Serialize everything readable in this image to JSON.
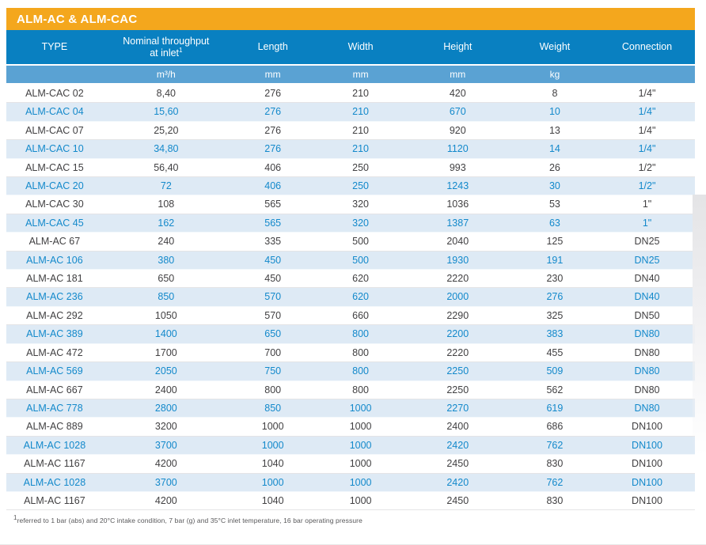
{
  "page": {
    "title": "ALM-AC & ALM-CAC",
    "footnote_sup": "1",
    "footnote_text": "referred to 1 bar (abs) and 20°C intake condition, 7 bar (g) and 35°C inlet temperature, 16 bar operating pressure"
  },
  "colors": {
    "title_bar_bg": "#F4A71D",
    "header_row_bg": "#0980C1",
    "units_row_bg": "#5AA2D3",
    "highlight_row_bg": "#DEEAF5",
    "highlight_row_text": "#1389CB",
    "normal_row_text": "#414042",
    "header_text": "#FFFFFF"
  },
  "table": {
    "header": {
      "type": "TYPE",
      "throughput_label": "Nominal throughput at inlet",
      "throughput_sup": "1",
      "length": "Length",
      "width": "Width",
      "height": "Height",
      "weight": "Weight",
      "connection": "Connection"
    },
    "units": {
      "type": "",
      "throughput": "m³/h",
      "length": "mm",
      "width": "mm",
      "height": "mm",
      "weight": "kg",
      "connection": ""
    },
    "rows": [
      [
        "ALM-CAC 02",
        "8,40",
        "276",
        "210",
        "420",
        "8",
        "1/4\""
      ],
      [
        "ALM-CAC 04",
        "15,60",
        "276",
        "210",
        "670",
        "10",
        "1/4\""
      ],
      [
        "ALM-CAC 07",
        "25,20",
        "276",
        "210",
        "920",
        "13",
        "1/4\""
      ],
      [
        "ALM-CAC 10",
        "34,80",
        "276",
        "210",
        "1120",
        "14",
        "1/4\""
      ],
      [
        "ALM-CAC 15",
        "56,40",
        "406",
        "250",
        "993",
        "26",
        "1/2\""
      ],
      [
        "ALM-CAC 20",
        "72",
        "406",
        "250",
        "1243",
        "30",
        "1/2\""
      ],
      [
        "ALM-CAC 30",
        "108",
        "565",
        "320",
        "1036",
        "53",
        "1\""
      ],
      [
        "ALM-CAC 45",
        "162",
        "565",
        "320",
        "1387",
        "63",
        "1\""
      ],
      [
        "ALM-AC 67",
        "240",
        "335",
        "500",
        "2040",
        "125",
        "DN25"
      ],
      [
        "ALM-AC 106",
        "380",
        "450",
        "500",
        "1930",
        "191",
        "DN25"
      ],
      [
        "ALM-AC 181",
        "650",
        "450",
        "620",
        "2220",
        "230",
        "DN40"
      ],
      [
        "ALM-AC 236",
        "850",
        "570",
        "620",
        "2000",
        "276",
        "DN40"
      ],
      [
        "ALM-AC 292",
        "1050",
        "570",
        "660",
        "2290",
        "325",
        "DN50"
      ],
      [
        "ALM-AC 389",
        "1400",
        "650",
        "800",
        "2200",
        "383",
        "DN80"
      ],
      [
        "ALM-AC 472",
        "1700",
        "700",
        "800",
        "2220",
        "455",
        "DN80"
      ],
      [
        "ALM-AC 569",
        "2050",
        "750",
        "800",
        "2250",
        "509",
        "DN80"
      ],
      [
        "ALM-AC 667",
        "2400",
        "800",
        "800",
        "2250",
        "562",
        "DN80"
      ],
      [
        "ALM-AC 778",
        "2800",
        "850",
        "1000",
        "2270",
        "619",
        "DN80"
      ],
      [
        "ALM-AC 889",
        "3200",
        "1000",
        "1000",
        "2400",
        "686",
        "DN100"
      ],
      [
        "ALM-AC 1028",
        "3700",
        "1000",
        "1000",
        "2420",
        "762",
        "DN100"
      ],
      [
        "ALM-AC 1167",
        "4200",
        "1040",
        "1000",
        "2450",
        "830",
        "DN100"
      ],
      [
        "ALM-AC 1028",
        "3700",
        "1000",
        "1000",
        "2420",
        "762",
        "DN100"
      ],
      [
        "ALM-AC 1167",
        "4200",
        "1040",
        "1000",
        "2450",
        "830",
        "DN100"
      ]
    ]
  }
}
